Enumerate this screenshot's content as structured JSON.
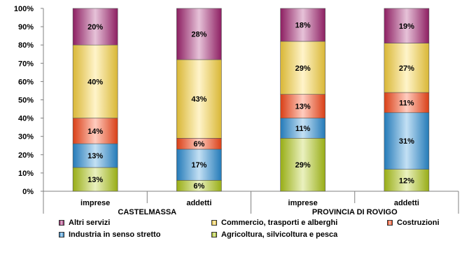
{
  "chart_data": {
    "type": "bar",
    "stacked": true,
    "percent_scale": true,
    "ylim": [
      0,
      100
    ],
    "y_ticks": [
      "0%",
      "10%",
      "20%",
      "30%",
      "40%",
      "50%",
      "60%",
      "70%",
      "80%",
      "90%",
      "100%"
    ],
    "categories": [
      "imprese",
      "addetti",
      "imprese",
      "addetti"
    ],
    "groups": [
      {
        "label": "CASTELMASSA",
        "span": [
          0,
          1
        ]
      },
      {
        "label": "PROVINCIA DI ROVIGO",
        "span": [
          2,
          3
        ]
      }
    ],
    "series": [
      {
        "name": "Agricoltura, silvicoltura e pesca",
        "color": "#b3cc1a",
        "values": [
          13,
          6,
          29,
          12
        ],
        "labels": [
          "13%",
          "6%",
          "29%",
          "12%"
        ]
      },
      {
        "name": "Industria in senso stretto",
        "color": "#2a8fd8",
        "values": [
          13,
          17,
          11,
          31
        ],
        "labels": [
          "13%",
          "17%",
          "11%",
          "31%"
        ]
      },
      {
        "name": "Costruzioni",
        "color": "#ff4a1a",
        "values": [
          14,
          6,
          13,
          11
        ],
        "labels": [
          "14%",
          "6%",
          "13%",
          "11%"
        ]
      },
      {
        "name": "Commercio, trasporti e alberghi",
        "color": "#ffd740",
        "values": [
          40,
          43,
          29,
          27
        ],
        "labels": [
          "40%",
          "43%",
          "29%",
          "27%"
        ]
      },
      {
        "name": "Altri servizi",
        "color": "#a62473",
        "values": [
          20,
          28,
          18,
          19
        ],
        "labels": [
          "20%",
          "28%",
          "18%",
          "19%"
        ]
      }
    ],
    "legend_position": "bottom",
    "grid": false
  }
}
